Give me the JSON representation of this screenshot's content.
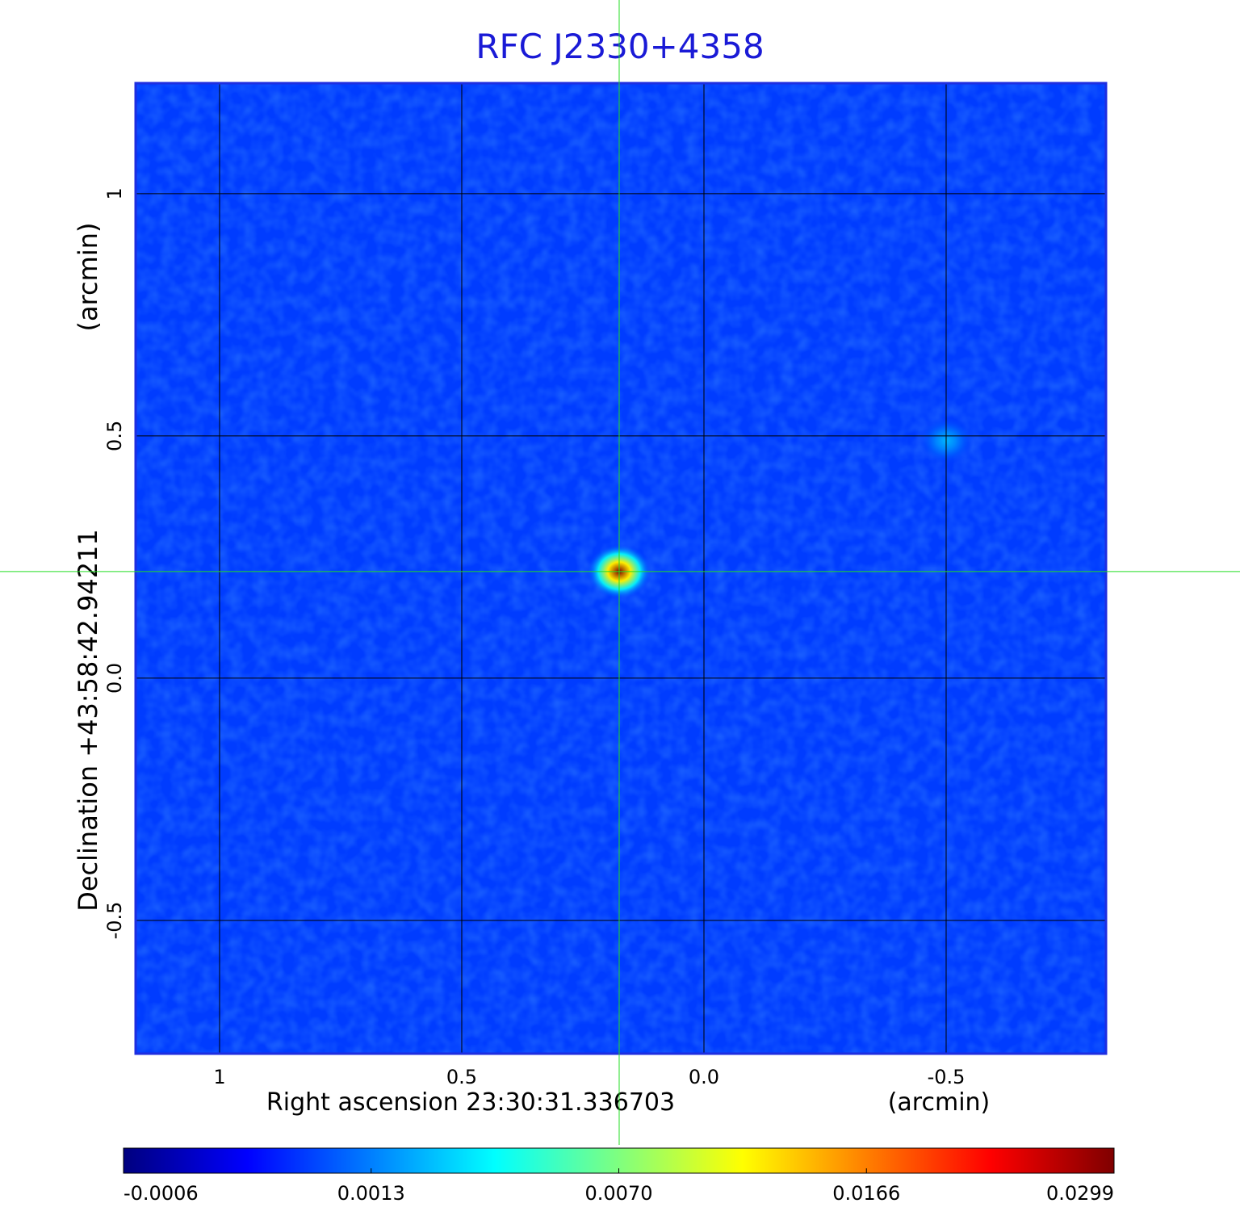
{
  "chart_data": {
    "type": "image",
    "title": "RFC J2330+4358",
    "x_label": "Right ascension  23:30:31.336703",
    "x_unit": "(arcmin)",
    "y_label": "Declination  +43:58:42.94211",
    "y_unit": "(arcmin)",
    "xlim": [
      1.1733,
      -0.83
    ],
    "ylim": [
      -0.775,
      1.228
    ],
    "xticks": [
      1.0,
      0.5,
      {
        "value": 0,
        "label": "0.0"
      },
      -0.5
    ],
    "yticks": [
      {
        "value": -0.5,
        "label": "-0.5"
      },
      {
        "value": 0,
        "label": "0.0"
      },
      0.5,
      1.0
    ],
    "grid": true,
    "background_level": 0.0008,
    "sources": [
      {
        "x": 0.175,
        "y": 0.22,
        "peak": 0.0299
      },
      {
        "x": -0.5,
        "y": 0.49,
        "peak": 0.0025
      }
    ],
    "crosshair": {
      "x": 0.175,
      "y": 0.22
    },
    "colorbar_ticks": [
      -0.0006,
      0.0013,
      {
        "value": 0.007,
        "label": "0.0070"
      },
      0.0166,
      0.0299
    ],
    "colormap": [
      "#00007f",
      "#0000ff",
      "#007fff",
      "#00ffff",
      "#7fff7f",
      "#ffff00",
      "#ff7f00",
      "#ff0000",
      "#7f0000"
    ]
  }
}
